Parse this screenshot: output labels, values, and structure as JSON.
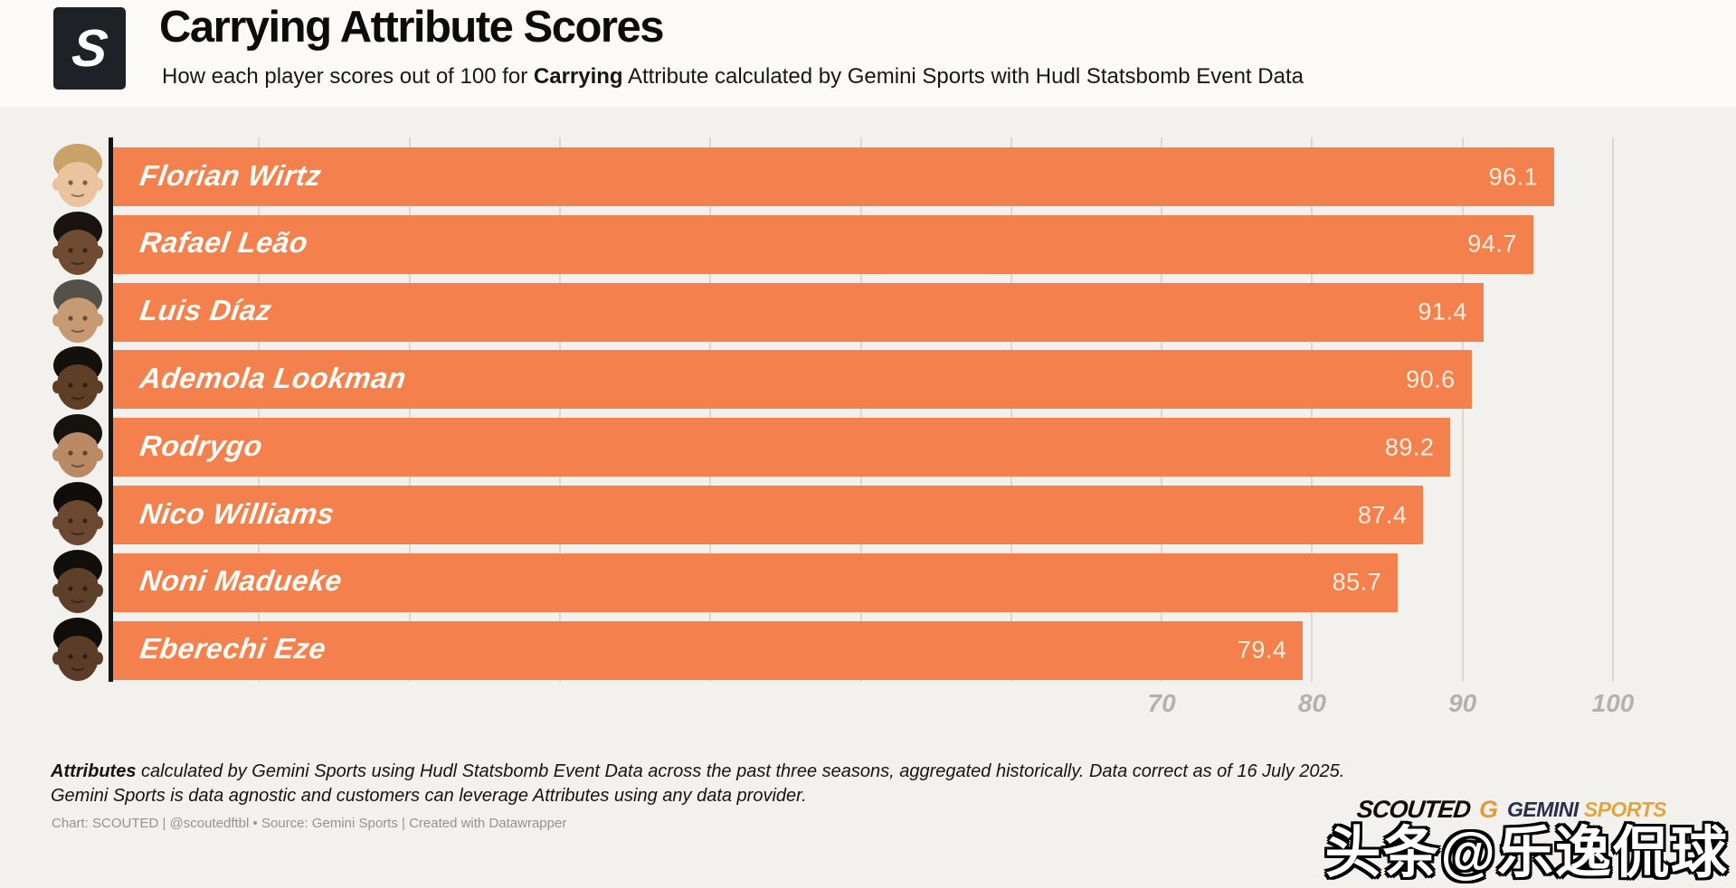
{
  "header": {
    "logo_letter": "S",
    "title": "Carrying Attribute Scores",
    "subtitle_prefix": "How each player scores out of 100 for ",
    "subtitle_bold": "Carrying",
    "subtitle_suffix": " Attribute calculated by Gemini Sports with Hudl Statsbomb Event Data"
  },
  "chart_data": {
    "type": "bar",
    "orientation": "horizontal",
    "title": "Carrying Attribute Scores",
    "categories": [
      "Florian Wirtz",
      "Rafael Leão",
      "Luis Díaz",
      "Ademola Lookman",
      "Rodrygo",
      "Nico Williams",
      "Noni Madueke",
      "Eberechi Eze"
    ],
    "values": [
      96.1,
      94.7,
      91.4,
      90.6,
      89.2,
      87.4,
      85.7,
      79.4
    ],
    "xlabel": "",
    "ylabel": "",
    "xlim": [
      0,
      108
    ],
    "xticks": [
      70,
      80,
      90,
      100
    ],
    "gridline_values": [
      10,
      20,
      30,
      40,
      50,
      60,
      70,
      80,
      90,
      100
    ],
    "grid": true,
    "legend": false,
    "bar_color": "#f3804d",
    "value_label_color": "#f9efdf",
    "name_label_color": "#fefcf7",
    "axis_line_color": "#141414",
    "tick_label_color": "#b5b2ad"
  },
  "players": [
    {
      "name": "Florian Wirtz",
      "value": 96.1,
      "skin": "#e9c49e",
      "hair": "#c8a268"
    },
    {
      "name": "Rafael Leão",
      "value": 94.7,
      "skin": "#6f4b31",
      "hair": "#191410"
    },
    {
      "name": "Luis Díaz",
      "value": 91.4,
      "skin": "#c89a72",
      "hair": "#55504a"
    },
    {
      "name": "Ademola Lookman",
      "value": 90.6,
      "skin": "#5f3e28",
      "hair": "#15100c"
    },
    {
      "name": "Rodrygo",
      "value": 89.2,
      "skin": "#b98a63",
      "hair": "#161210"
    },
    {
      "name": "Nico Williams",
      "value": 87.4,
      "skin": "#6b4830",
      "hair": "#0f0c0a"
    },
    {
      "name": "Noni Madueke",
      "value": 85.7,
      "skin": "#5e402a",
      "hair": "#120e0b"
    },
    {
      "name": "Eberechi Eze",
      "value": 79.4,
      "skin": "#5a3c28",
      "hair": "#100d0a"
    }
  ],
  "footer": {
    "note_bold": "Attributes",
    "note_rest": " calculated by Gemini Sports using Hudl Statsbomb Event Data across the past three seasons, aggregated historically. Data correct as of 16 July 2025.",
    "note_line2": "Gemini Sports is data agnostic and customers can leverage Attributes using any data provider.",
    "credit": "Chart: SCOUTED | @scoutedftbl • Source: Gemini Sports | Created with Datawrapper"
  },
  "branding": {
    "scouted_wordmark": "SCOUTED",
    "gemini_g": "G",
    "gemini_name": "GEMINI",
    "gemini_sports": "SPORTS"
  },
  "watermark": "头条@乐逸侃球"
}
